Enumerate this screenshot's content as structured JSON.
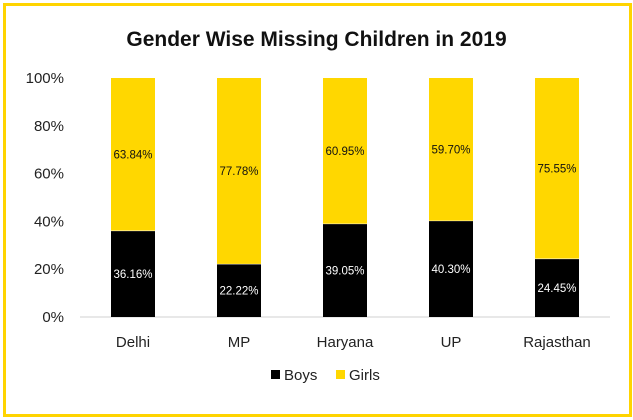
{
  "chart_data": {
    "type": "bar",
    "stacked": true,
    "percent": true,
    "title": "Gender Wise Missing Children in 2019",
    "categories": [
      "Delhi",
      "MP",
      "Haryana",
      "UP",
      "Rajasthan"
    ],
    "series": [
      {
        "name": "Boys",
        "color": "#000000",
        "values": [
          36.16,
          22.22,
          39.05,
          40.3,
          24.45
        ],
        "labels": [
          "36.16%",
          "22.22%",
          "39.05%",
          "40.30%",
          "24.45%"
        ]
      },
      {
        "name": "Girls",
        "color": "#FFD700",
        "values": [
          63.84,
          77.78,
          60.95,
          59.7,
          75.55
        ],
        "labels": [
          "63.84%",
          "77.78%",
          "60.95%",
          "59.70%",
          "75.55%"
        ]
      }
    ],
    "yticks": [
      "0%",
      "20%",
      "40%",
      "60%",
      "80%",
      "100%"
    ],
    "ylim": [
      0,
      100
    ],
    "xlabel": "",
    "ylabel": "",
    "legend": "bottom",
    "border_color": "#FFD400"
  }
}
